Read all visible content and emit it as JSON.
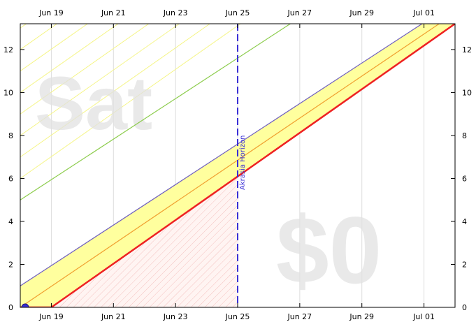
{
  "chart_data": {
    "type": "line",
    "x_type": "date",
    "xlim": [
      "2023-06-18",
      "2023-07-02"
    ],
    "ylim": [
      0,
      13.2
    ],
    "x_ticks": [
      {
        "x": "2023-06-19",
        "label": "Jun 19"
      },
      {
        "x": "2023-06-21",
        "label": "Jun 21"
      },
      {
        "x": "2023-06-23",
        "label": "Jun 23"
      },
      {
        "x": "2023-06-25",
        "label": "Jun 25"
      },
      {
        "x": "2023-06-27",
        "label": "Jun 27"
      },
      {
        "x": "2023-06-29",
        "label": "Jun 29"
      },
      {
        "x": "2023-07-01",
        "label": "Jul 01"
      }
    ],
    "y_ticks": [
      0,
      2,
      4,
      6,
      8,
      10,
      12
    ],
    "grid": "vertical",
    "watermarks": {
      "day": "Sat",
      "amount": "$0"
    },
    "annotation": {
      "x": "2023-06-25",
      "label": "Akrasia Horizon",
      "color": "#3a2fd6"
    },
    "series": [
      {
        "role": "yellow-brick-road-upper",
        "color": "#6f5fc0",
        "points": [
          {
            "x": "2023-06-18",
            "y": 1.0
          },
          {
            "x": "2023-07-02",
            "y": 14.2
          }
        ]
      },
      {
        "role": "centerline",
        "color": "#f0a030",
        "points": [
          {
            "x": "2023-06-18",
            "y": 0.0
          },
          {
            "x": "2023-07-02",
            "y": 13.7
          }
        ]
      },
      {
        "role": "bright-red-line",
        "color": "#ee2222",
        "points": [
          {
            "x": "2023-06-18",
            "y": 0
          },
          {
            "x": "2023-06-19",
            "y": 0
          },
          {
            "x": "2023-07-02",
            "y": 13.2
          }
        ]
      },
      {
        "role": "green-guideline",
        "color": "#8ccc4c",
        "points": [
          {
            "x": "2023-06-18",
            "y": 5.0
          },
          {
            "x": "2023-07-02",
            "y": 18.2
          }
        ]
      }
    ],
    "datapoints": [
      {
        "x": "2023-06-18",
        "y": 0
      }
    ],
    "colors": {
      "road": "#ffff9e",
      "guides": "#f5f588",
      "red_zone": "#ffd8d8",
      "datapoint": "#3a2fd6"
    }
  }
}
